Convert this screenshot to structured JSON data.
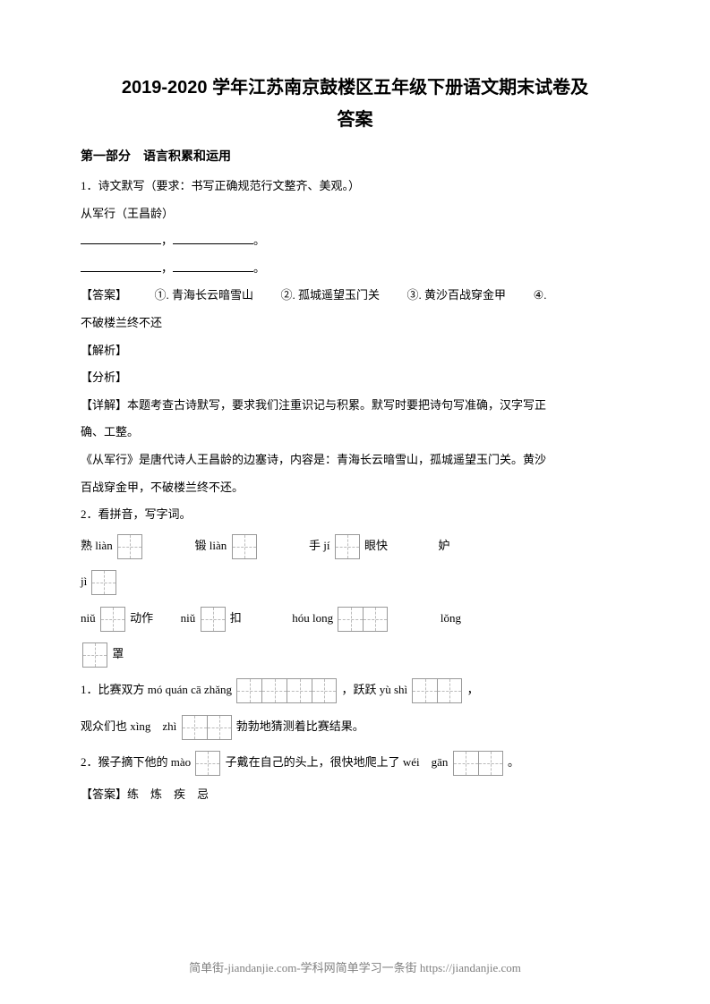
{
  "title_line1": "2019-2020 学年江苏南京鼓楼区五年级下册语文期末试卷及",
  "title_line2": "答案",
  "section1_header": "第一部分　语言积累和运用",
  "q1": {
    "prompt": "1．诗文默写（要求：书写正确规范行文整齐、美观。）",
    "poem_title": "从军行（王昌龄）",
    "comma": "，",
    "period": "。",
    "answer_label": "【答案】",
    "answers": [
      "①. 青海长云暗雪山",
      "②. 孤城遥望玉门关",
      "③. 黄沙百战穿金甲",
      "④."
    ],
    "answer_line2": "不破楼兰终不还",
    "jiexi_label": "【解析】",
    "fenxi_label": "【分析】",
    "xiangjie_label": "【详解】",
    "xiangjie_text": "本题考查古诗默写，要求我们注重识记与积累。默写时要把诗句写准确，汉字写正",
    "xiangjie_text2": "确、工整。",
    "congjunxing": "《从军行》是唐代诗人王昌龄的边塞诗，内容是：青海长云暗雪山，孤城遥望玉门关。黄沙",
    "congjunxing2": "百战穿金甲，不破楼兰终不还。"
  },
  "q2": {
    "prompt": "2．看拼音，写字词。",
    "row1": {
      "a": "熟 liàn",
      "b": "锻 liàn",
      "c": "手 jí",
      "d": "眼快",
      "e": "妒"
    },
    "row2": {
      "a": "jì"
    },
    "row3": {
      "a": "niǔ",
      "a2": "动作",
      "b": "niǔ",
      "b2": "扣",
      "c": "hóu  long",
      "d": "lǒng"
    },
    "row4": {
      "a": "罩"
    },
    "sent1_a": "1．比赛双方 mó  quán  cā  zhǎng",
    "sent1_b": "，跃跃 yù  shì",
    "sent1_c": "，",
    "sent2_a": "观众们也 xìng　zhì",
    "sent2_b": "勃勃地猜测着比赛结果。",
    "sent3_a": "2．猴子摘下他的 mào",
    "sent3_b": "子戴在自己的头上，很快地爬上了 wéi　gān",
    "sent3_c": "。",
    "answer_label": "【答案】",
    "answer_text": "练　炼　疾　忌"
  },
  "footer": "简单街-jiandanjie.com-学科网简单学习一条街 https://jiandanjie.com"
}
